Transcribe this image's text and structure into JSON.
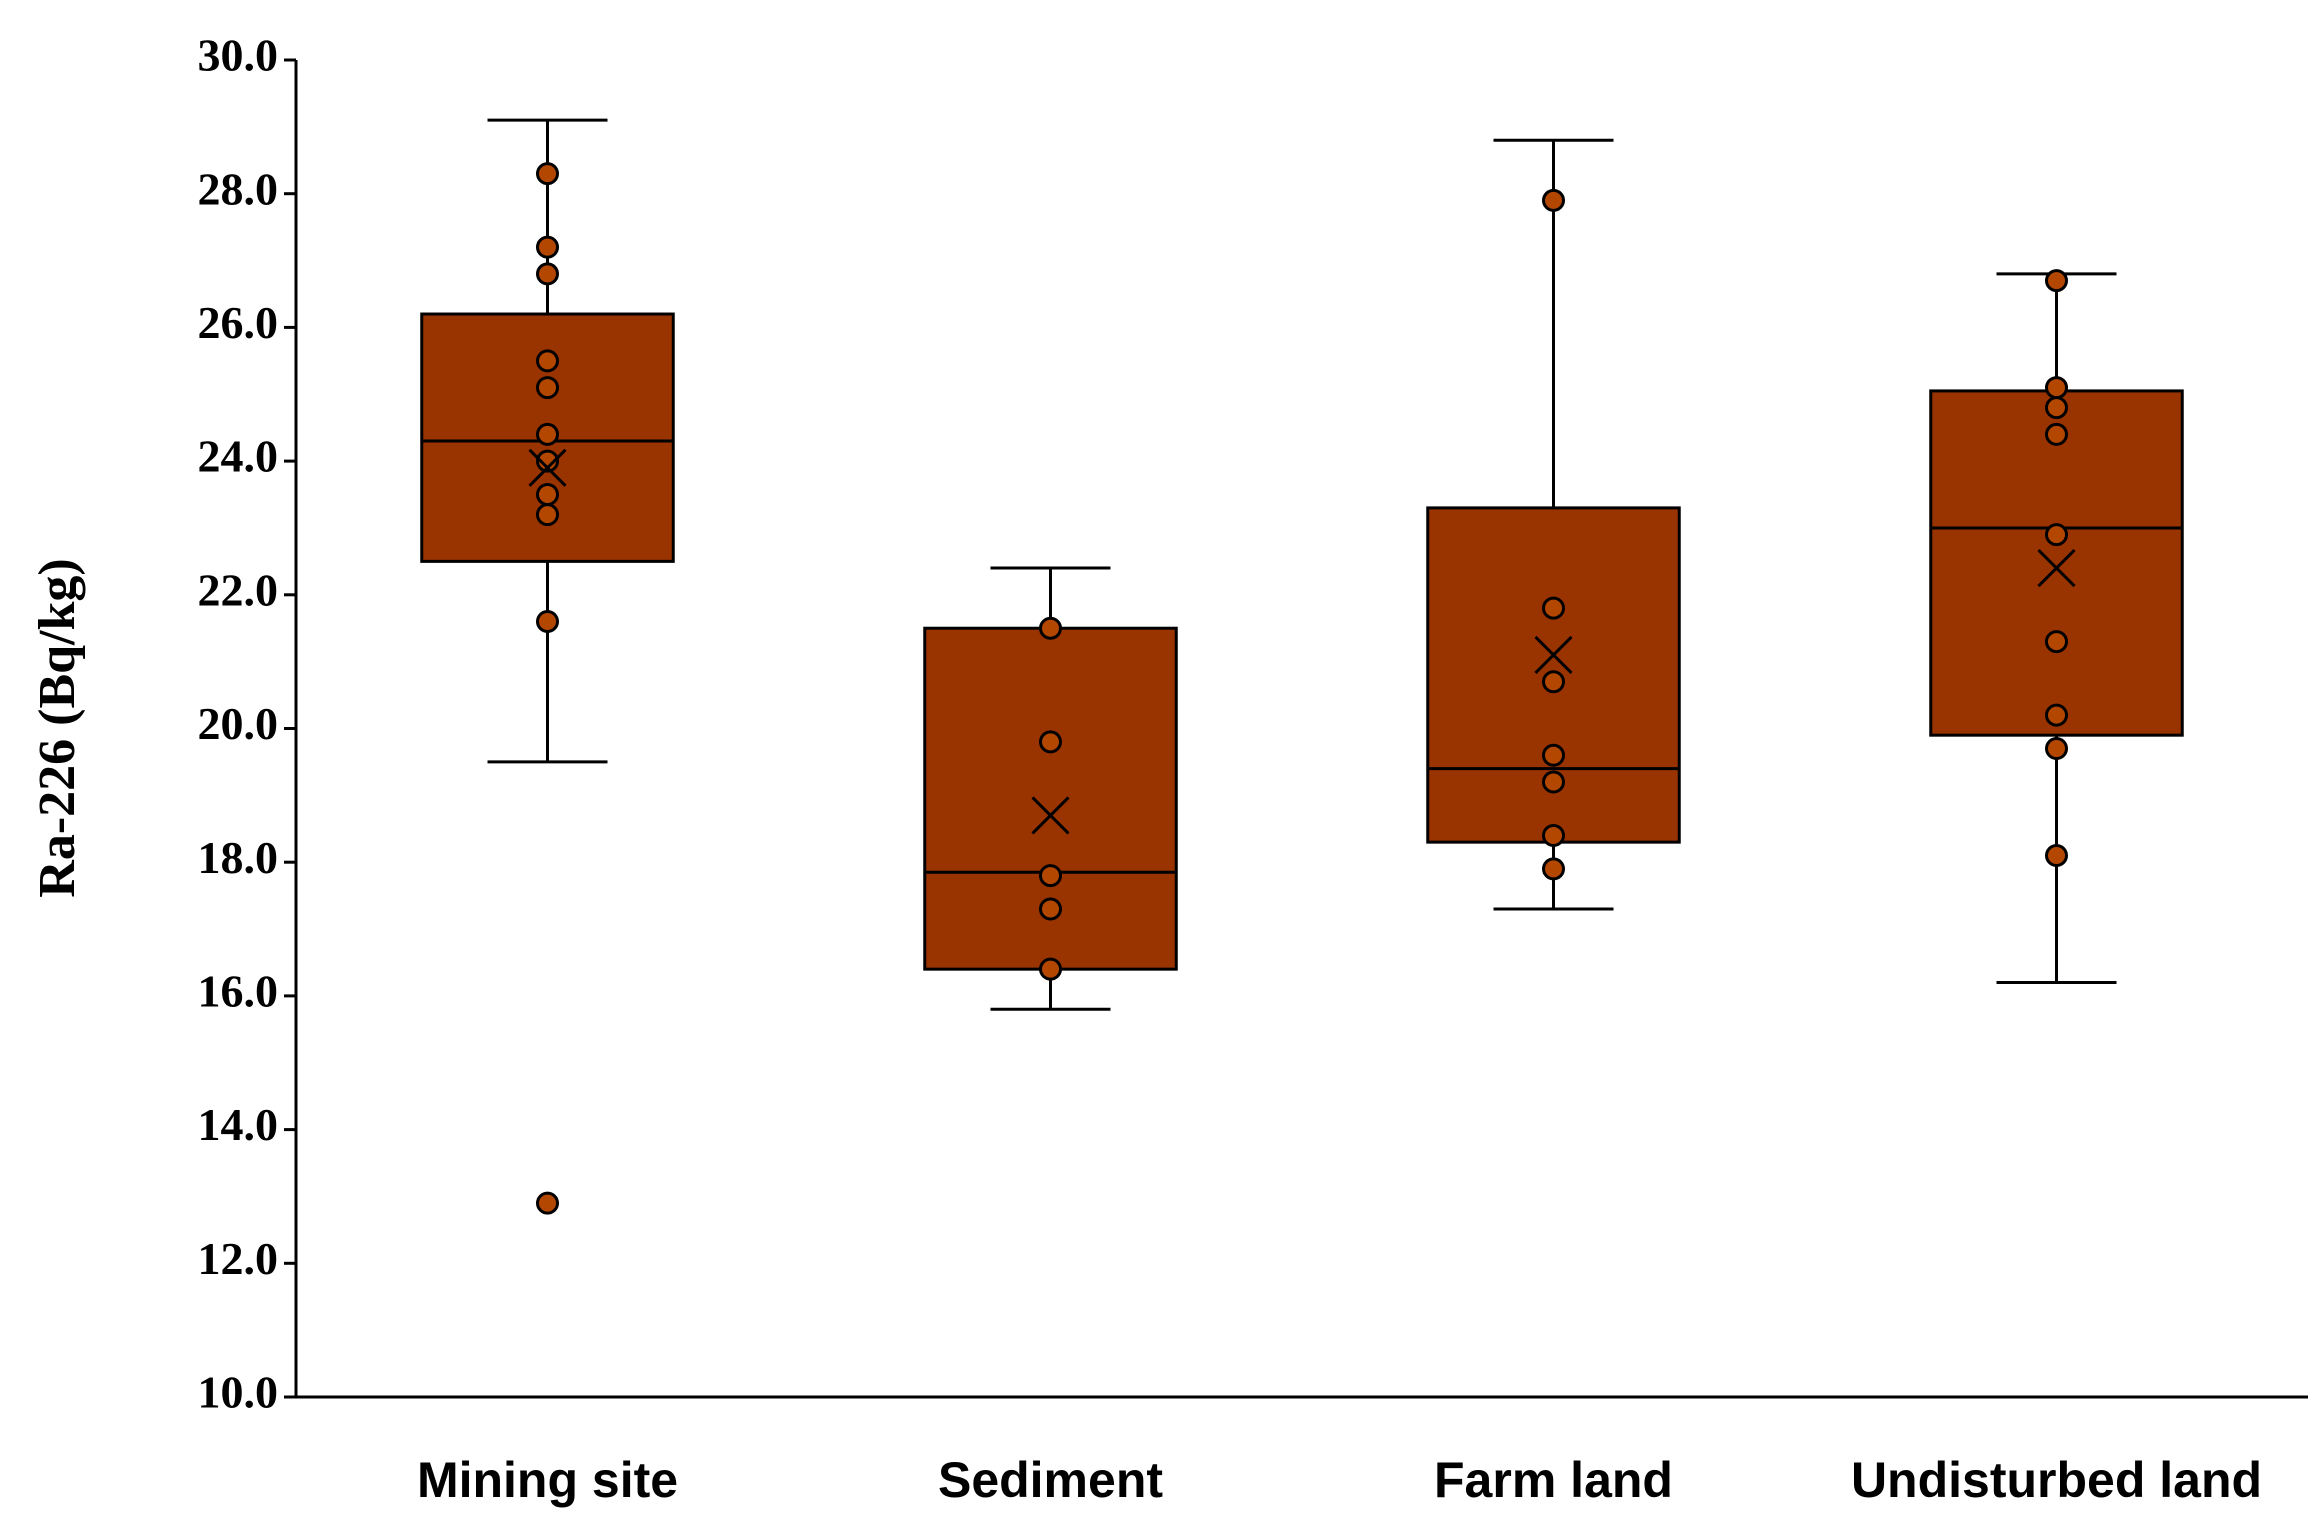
{
  "chart_data": {
    "type": "box",
    "y_label": "Ra-226 (Bq/kg)",
    "categories": [
      "Mining site",
      "Sediment",
      "Farm land",
      "Undisturbed land"
    ],
    "color": "#993300",
    "point_color": "#b34700",
    "boxes": [
      {
        "whisker_low": 19.5,
        "q1": 22.5,
        "median": 24.3,
        "q3": 26.2,
        "whisker_high": 29.1,
        "mean": 23.9,
        "points": [
          28.3,
          27.2,
          26.8,
          25.5,
          25.1,
          24.4,
          24.0,
          23.5,
          23.2,
          21.6,
          12.9
        ]
      },
      {
        "whisker_low": 15.8,
        "q1": 16.4,
        "median": 17.85,
        "q3": 21.5,
        "whisker_high": 22.4,
        "mean": 18.7,
        "points": [
          21.5,
          19.8,
          17.8,
          17.3,
          16.4
        ]
      },
      {
        "whisker_low": 17.3,
        "q1": 18.3,
        "median": 19.4,
        "q3": 23.3,
        "whisker_high": 28.8,
        "mean": 21.1,
        "points": [
          27.9,
          21.8,
          20.7,
          19.6,
          19.2,
          18.4,
          17.9
        ]
      },
      {
        "whisker_low": 16.2,
        "q1": 19.9,
        "median": 23.0,
        "q3": 25.05,
        "whisker_high": 26.8,
        "mean": 22.4,
        "points": [
          26.7,
          25.1,
          24.8,
          24.4,
          22.9,
          21.3,
          20.2,
          19.7,
          18.1
        ]
      }
    ],
    "ylim": [
      10,
      30
    ],
    "yticks": [
      {
        "value": 10,
        "label": "10.0"
      },
      {
        "value": 12,
        "label": "12.0"
      },
      {
        "value": 14,
        "label": "14.0"
      },
      {
        "value": 16,
        "label": "16.0"
      },
      {
        "value": 18,
        "label": "18.0"
      },
      {
        "value": 20,
        "label": "20.0"
      },
      {
        "value": 22,
        "label": "22.0"
      },
      {
        "value": 24,
        "label": "24.0"
      },
      {
        "value": 26,
        "label": "26.0"
      },
      {
        "value": 28,
        "label": "28.0"
      },
      {
        "value": 30,
        "label": "30.0"
      }
    ]
  }
}
